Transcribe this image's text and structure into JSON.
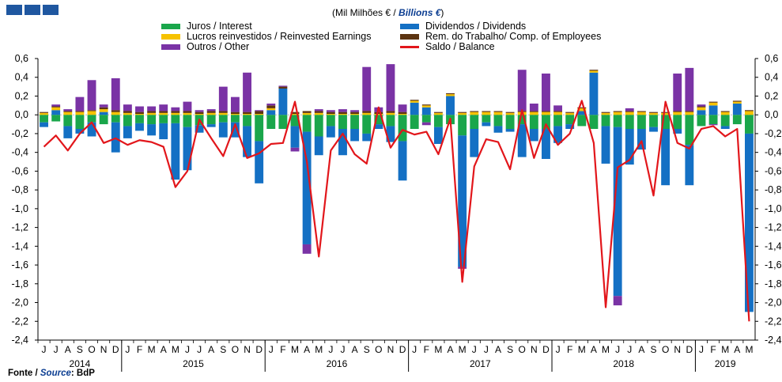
{
  "header": {
    "unit_pt": "(Mil Milhões € / ",
    "unit_en": "Billions €",
    "unit_close": ")"
  },
  "footer": {
    "source_pt": "Fonte / ",
    "source_en": "Source",
    "source_rest": ": BdP"
  },
  "colors": {
    "interest": "#1aa64b",
    "dividends": "#1470c4",
    "reinvested": "#f6c200",
    "employees": "#5c3411",
    "other": "#7a33a5",
    "balance": "#e2161b"
  },
  "chart_data": {
    "type": "bar",
    "stacked": true,
    "ylim": [
      -2.4,
      0.6
    ],
    "y_ticks": [
      "0,6",
      "0,4",
      "0,2",
      "0,0",
      "-0,2",
      "-0,4",
      "-0,6",
      "-0,8",
      "-1,0",
      "-1,2",
      "-1,4",
      "-1,6",
      "-1,8",
      "-2,0",
      "-2,2",
      "-2,4"
    ],
    "y_axis_both_sides": true,
    "legend_position": "top",
    "month_labels": [
      "J",
      "J",
      "A",
      "S",
      "O",
      "N",
      "D",
      "J",
      "F",
      "M",
      "A",
      "M",
      "J",
      "J",
      "A",
      "S",
      "O",
      "N",
      "D",
      "J",
      "F",
      "M",
      "A",
      "M",
      "J",
      "J",
      "A",
      "S",
      "O",
      "N",
      "D",
      "J",
      "F",
      "M",
      "A",
      "M",
      "J",
      "J",
      "A",
      "S",
      "O",
      "N",
      "D",
      "J",
      "F",
      "M",
      "A",
      "M",
      "J",
      "J",
      "A",
      "S",
      "O",
      "N",
      "D",
      "J",
      "F",
      "M",
      "A",
      "M"
    ],
    "years": [
      {
        "label": "2014",
        "span": 7
      },
      {
        "label": "2015",
        "span": 12
      },
      {
        "label": "2016",
        "span": 12
      },
      {
        "label": "2017",
        "span": 12
      },
      {
        "label": "2018",
        "span": 12
      },
      {
        "label": "2019",
        "span": 5
      }
    ],
    "series": [
      {
        "key": "interest",
        "name": "Juros / Interest",
        "values": [
          -0.08,
          -0.07,
          -0.12,
          -0.15,
          -0.08,
          -0.1,
          -0.08,
          -0.12,
          -0.09,
          -0.1,
          -0.09,
          -0.09,
          -0.13,
          -0.11,
          -0.1,
          -0.08,
          -0.08,
          -0.12,
          -0.28,
          -0.15,
          -0.15,
          -0.12,
          -0.18,
          -0.23,
          -0.12,
          -0.15,
          -0.15,
          -0.2,
          -0.1,
          -0.12,
          -0.28,
          -0.15,
          -0.08,
          -0.13,
          -0.1,
          -0.22,
          -0.15,
          -0.08,
          -0.12,
          -0.15,
          -0.1,
          -0.15,
          -0.15,
          -0.12,
          -0.1,
          -0.12,
          -0.15,
          -0.12,
          -0.13,
          -0.15,
          -0.15,
          -0.13,
          -0.15,
          -0.15,
          -0.32,
          -0.12,
          -0.1,
          -0.12,
          -0.1,
          -0.2
        ]
      },
      {
        "key": "dividends",
        "name": "Dividendos / Dividends",
        "values": [
          -0.05,
          0.05,
          -0.13,
          -0.05,
          -0.15,
          0.03,
          -0.32,
          -0.13,
          -0.08,
          -0.12,
          -0.17,
          -0.6,
          -0.46,
          -0.08,
          -0.03,
          -0.16,
          -0.16,
          -0.33,
          -0.45,
          0.05,
          0.28,
          -0.23,
          -1.2,
          -0.2,
          -0.12,
          -0.28,
          -0.13,
          -0.08,
          -0.05,
          -0.17,
          -0.42,
          0.13,
          0.08,
          -0.18,
          0.2,
          -1.4,
          -0.3,
          -0.04,
          -0.07,
          -0.03,
          -0.35,
          -0.13,
          -0.32,
          -0.18,
          -0.05,
          0.04,
          0.45,
          -0.4,
          -1.8,
          -0.38,
          -0.22,
          -0.05,
          -0.6,
          -0.05,
          -0.43,
          0.05,
          0.1,
          -0.03,
          0.12,
          -1.9
        ]
      },
      {
        "key": "reinvested",
        "name": "Lucros reinvestidos / Reinvested Earnings",
        "values": [
          0.02,
          0.03,
          0.03,
          0.03,
          0.04,
          0.03,
          0.03,
          0.02,
          0.01,
          0.02,
          0.02,
          0.02,
          0.02,
          0.01,
          0.02,
          0.02,
          0.01,
          0.01,
          0.01,
          0.02,
          0.0,
          0.01,
          0.02,
          0.02,
          0.01,
          0.01,
          0.01,
          0.02,
          0.01,
          0.02,
          0.01,
          0.02,
          0.02,
          0.02,
          0.02,
          0.02,
          0.03,
          0.03,
          0.03,
          0.02,
          0.03,
          0.03,
          0.03,
          0.03,
          0.02,
          0.03,
          0.02,
          0.02,
          0.03,
          0.03,
          0.03,
          0.02,
          0.02,
          0.03,
          0.03,
          0.03,
          0.03,
          0.03,
          0.02,
          0.04
        ]
      },
      {
        "key": "employees",
        "name": "Rem. do Trabalho/ Comp. of Employees",
        "values": [
          0.01,
          0.01,
          0.01,
          0.01,
          0.01,
          0.02,
          0.02,
          0.02,
          0.02,
          0.02,
          0.02,
          0.02,
          0.02,
          0.02,
          0.02,
          0.02,
          0.02,
          0.02,
          0.03,
          0.03,
          0.02,
          0.02,
          0.02,
          0.02,
          0.02,
          0.02,
          0.02,
          0.02,
          0.02,
          0.02,
          0.02,
          0.01,
          0.01,
          0.01,
          0.01,
          0.01,
          0.01,
          0.01,
          0.01,
          0.01,
          0.01,
          0.01,
          0.01,
          0.01,
          0.01,
          0.01,
          0.01,
          0.01,
          0.01,
          0.01,
          0.01,
          0.01,
          0.01,
          0.01,
          0.01,
          0.01,
          0.01,
          0.01,
          0.01,
          0.01
        ]
      },
      {
        "key": "other",
        "name": "Outros / Other",
        "values": [
          0.0,
          0.02,
          0.02,
          0.15,
          0.32,
          0.03,
          0.34,
          0.07,
          0.06,
          0.05,
          0.07,
          0.04,
          0.1,
          0.02,
          0.02,
          0.26,
          0.16,
          0.42,
          0.01,
          0.02,
          0.01,
          -0.04,
          -0.1,
          0.02,
          0.02,
          0.03,
          0.02,
          0.47,
          0.05,
          0.5,
          0.08,
          0.0,
          -0.03,
          0.0,
          0.0,
          -0.02,
          0.0,
          0.0,
          0.0,
          0.0,
          0.44,
          0.08,
          0.4,
          0.06,
          0.0,
          0.0,
          0.0,
          0.0,
          -0.1,
          0.03,
          0.0,
          0.0,
          0.0,
          0.4,
          0.46,
          0.02,
          -0.01,
          0.0,
          0.0,
          0.0
        ]
      },
      {
        "key": "balance",
        "name": "Saldo / Balance",
        "type": "line",
        "values": [
          -0.34,
          -0.22,
          -0.38,
          -0.2,
          -0.08,
          -0.3,
          -0.25,
          -0.32,
          -0.27,
          -0.29,
          -0.34,
          -0.77,
          -0.6,
          -0.05,
          -0.25,
          -0.44,
          -0.1,
          -0.46,
          -0.41,
          -0.31,
          -0.3,
          0.14,
          -0.5,
          -1.51,
          -0.38,
          -0.2,
          -0.42,
          -0.52,
          0.08,
          -0.35,
          -0.16,
          -0.21,
          -0.18,
          -0.42,
          -0.04,
          -1.78,
          -0.55,
          -0.26,
          -0.29,
          -0.58,
          0.05,
          -0.46,
          -0.1,
          -0.32,
          -0.2,
          0.15,
          -0.3,
          -2.05,
          -0.56,
          -0.48,
          -0.28,
          -0.86,
          0.14,
          -0.3,
          -0.36,
          -0.15,
          -0.12,
          -0.23,
          -0.15,
          -2.2
        ]
      }
    ]
  }
}
